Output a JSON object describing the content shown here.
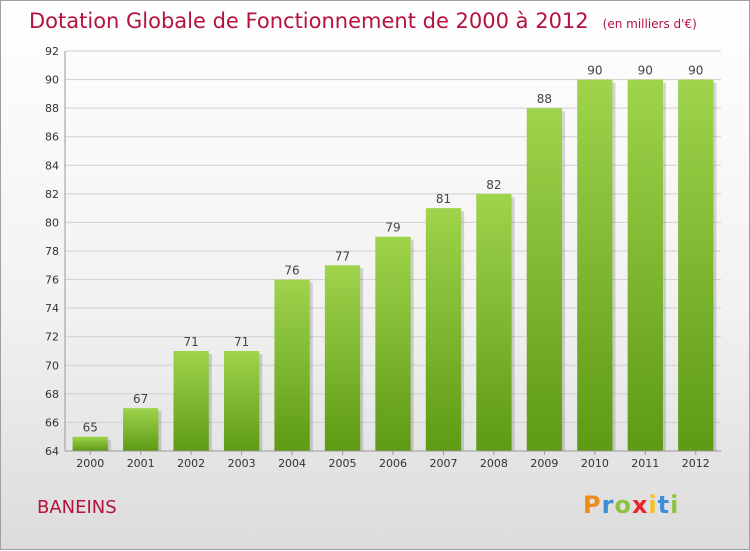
{
  "header": {
    "title": "Dotation Globale de Fonctionnement de 2000 à 2012",
    "unit": "(en milliers d'€)"
  },
  "footer": {
    "place": "BANEINS",
    "logo_text": "Proxiti",
    "logo_colors": [
      "#f08a1c",
      "#3a8fd8",
      "#8cc63f",
      "#e8262a",
      "#f7c21b",
      "#3a8fd8",
      "#8cc63f"
    ]
  },
  "chart_data": {
    "type": "bar",
    "categories": [
      "2000",
      "2001",
      "2002",
      "2003",
      "2004",
      "2005",
      "2006",
      "2007",
      "2008",
      "2009",
      "2010",
      "2011",
      "2012"
    ],
    "values": [
      65,
      67,
      71,
      71,
      76,
      77,
      79,
      81,
      82,
      88,
      90,
      90,
      90
    ],
    "ylim": [
      64,
      92
    ],
    "yticks": [
      64,
      66,
      68,
      70,
      72,
      74,
      76,
      78,
      80,
      82,
      84,
      86,
      88,
      90,
      92
    ],
    "grid": true,
    "bar_color_top": "#9fd44c",
    "bar_color_bottom": "#5e9a14",
    "grid_color": "#d0d0d0",
    "title_color": "#b5123d"
  }
}
